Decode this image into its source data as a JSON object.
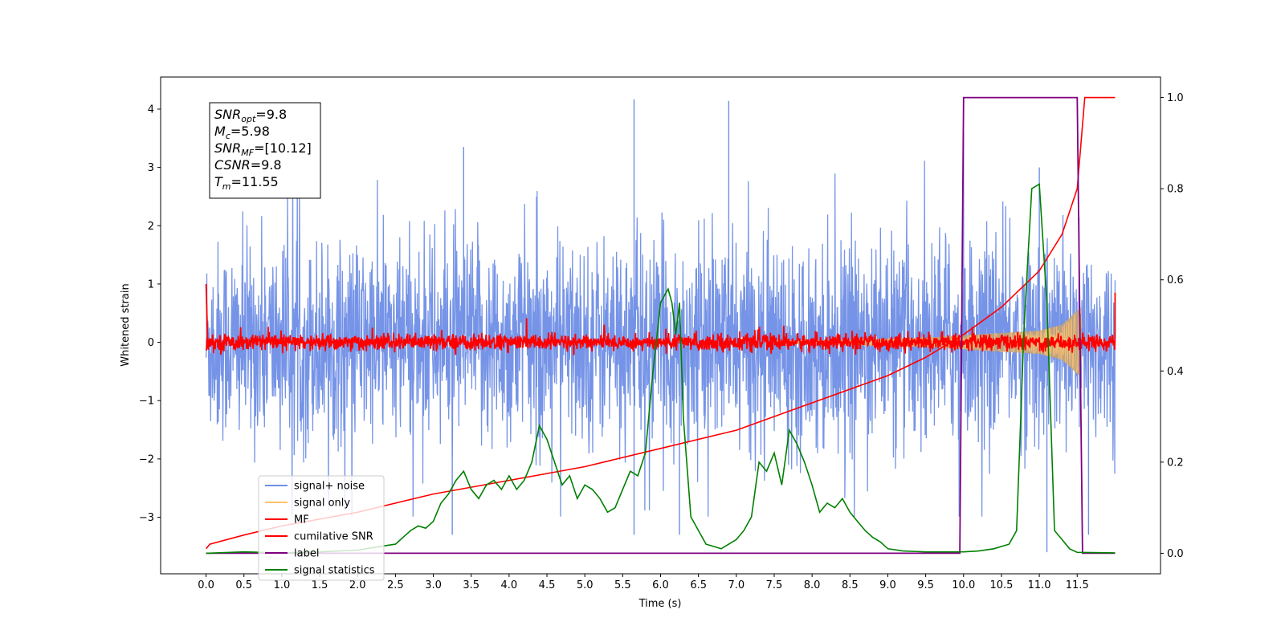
{
  "chart_data": {
    "type": "line",
    "xlabel": "Time (s)",
    "ylabel_left": "Whitened strain",
    "ylabel_right": "",
    "xlim": [
      -0.6,
      12.6
    ],
    "ylim_left": [
      -3.97,
      4.55
    ],
    "ylim_right": [
      -0.045,
      1.045
    ],
    "xticks": [
      "0.0",
      "0.5",
      "1.0",
      "1.5",
      "2.0",
      "2.5",
      "3.0",
      "3.5",
      "4.0",
      "4.5",
      "5.0",
      "5.5",
      "6.0",
      "6.5",
      "7.0",
      "7.5",
      "8.0",
      "8.5",
      "9.0",
      "9.5",
      "10.0",
      "10.5",
      "11.0",
      "11.5"
    ],
    "yticks_left": [
      "−3",
      "−2",
      "−1",
      "0",
      "1",
      "2",
      "3",
      "4"
    ],
    "yticks_right": [
      "0.0",
      "0.2",
      "0.4",
      "0.6",
      "0.8",
      "1.0"
    ],
    "grid": false,
    "legend_position": "lower-left",
    "legend": [
      {
        "label": "signal+ noise",
        "color": "#6f8ee6"
      },
      {
        "label": "signal only",
        "color": "#ffc36e"
      },
      {
        "label": "MF",
        "color": "#ff0000"
      },
      {
        "label": "cumilative SNR",
        "color": "#ff0000"
      },
      {
        "label": "label",
        "color": "#800080"
      },
      {
        "label": "signal statistics",
        "color": "#008000"
      }
    ],
    "info_box": [
      {
        "base": "SNR",
        "sub": "opt",
        "value": "=9.8"
      },
      {
        "base": "M",
        "sub": "c",
        "value": "=5.98"
      },
      {
        "base": "SNR",
        "sub": "MF",
        "value": "=[10.12]"
      },
      {
        "base": "CSNR",
        "sub": "",
        "value": "=9.8"
      },
      {
        "base": "T",
        "sub": "m",
        "value": "=11.55"
      }
    ],
    "series": [
      {
        "name": "signal+ noise",
        "axis": "left",
        "color": "#6f8ee6",
        "description_only": false,
        "x_range": [
          0.0,
          12.0
        ],
        "amplitude_typical": 1.3,
        "amplitude_peak": 4.15,
        "peaks": [
          [
            5.65,
            4.17
          ],
          [
            6.9,
            4.14
          ],
          [
            10.0,
            3.6
          ],
          [
            11.0,
            3.0
          ],
          [
            3.4,
            3.35
          ]
        ],
        "troughs": [
          [
            3.25,
            -3.3
          ],
          [
            5.65,
            -3.3
          ],
          [
            6.25,
            -3.3
          ],
          [
            11.1,
            -3.6
          ],
          [
            11.65,
            -3.3
          ]
        ]
      },
      {
        "name": "signal only",
        "axis": "left",
        "color": "#ffc36e",
        "envelope": [
          [
            0.0,
            0.02
          ],
          [
            8.0,
            0.03
          ],
          [
            9.5,
            0.08
          ],
          [
            10.5,
            0.16
          ],
          [
            11.0,
            0.2
          ],
          [
            11.3,
            0.3
          ],
          [
            11.55,
            0.6
          ],
          [
            11.57,
            0.0
          ]
        ]
      },
      {
        "name": "MF",
        "axis": "left",
        "color": "#ff0000",
        "start_value": 1.0,
        "noise_amplitude": 0.1,
        "end_value": 0.85,
        "x_range": [
          0.0,
          12.0
        ]
      },
      {
        "name": "cumilative SNR",
        "axis": "right",
        "x": [
          0.0,
          0.05,
          0.5,
          1.0,
          2.0,
          3.0,
          4.0,
          5.0,
          6.0,
          7.0,
          8.0,
          9.0,
          9.5,
          10.0,
          10.5,
          11.0,
          11.3,
          11.5,
          11.55,
          11.6,
          12.0
        ],
        "y": [
          0.01,
          0.02,
          0.04,
          0.06,
          0.09,
          0.13,
          0.16,
          0.19,
          0.23,
          0.27,
          0.33,
          0.39,
          0.43,
          0.48,
          0.54,
          0.62,
          0.7,
          0.8,
          0.9,
          1.0,
          1.0
        ]
      },
      {
        "name": "label",
        "axis": "right",
        "x": [
          0.0,
          9.95,
          10.0,
          11.5,
          11.57,
          12.0
        ],
        "y": [
          0.0,
          0.0,
          1.0,
          1.0,
          0.0,
          0.0
        ]
      },
      {
        "name": "signal statistics",
        "axis": "right",
        "x": [
          0.0,
          0.5,
          1.0,
          1.5,
          2.0,
          2.3,
          2.5,
          2.7,
          2.8,
          2.9,
          3.0,
          3.1,
          3.2,
          3.3,
          3.4,
          3.5,
          3.6,
          3.7,
          3.8,
          3.9,
          4.0,
          4.1,
          4.2,
          4.3,
          4.4,
          4.5,
          4.6,
          4.7,
          4.8,
          4.9,
          5.0,
          5.1,
          5.2,
          5.3,
          5.4,
          5.5,
          5.6,
          5.7,
          5.8,
          5.9,
          6.0,
          6.1,
          6.15,
          6.2,
          6.25,
          6.3,
          6.4,
          6.5,
          6.6,
          6.7,
          6.8,
          6.9,
          7.0,
          7.1,
          7.2,
          7.3,
          7.4,
          7.5,
          7.6,
          7.7,
          7.8,
          7.9,
          8.0,
          8.1,
          8.2,
          8.3,
          8.4,
          8.5,
          8.6,
          8.7,
          8.8,
          8.9,
          9.0,
          9.2,
          9.5,
          10.0,
          10.2,
          10.4,
          10.6,
          10.7,
          10.8,
          10.9,
          11.0,
          11.1,
          11.2,
          11.3,
          11.4,
          11.5,
          12.0
        ],
        "y": [
          0.0,
          0.003,
          0.001,
          0.003,
          0.007,
          0.015,
          0.02,
          0.05,
          0.06,
          0.055,
          0.07,
          0.11,
          0.13,
          0.16,
          0.18,
          0.14,
          0.12,
          0.15,
          0.16,
          0.14,
          0.17,
          0.14,
          0.16,
          0.2,
          0.28,
          0.25,
          0.2,
          0.15,
          0.17,
          0.12,
          0.15,
          0.14,
          0.12,
          0.09,
          0.1,
          0.14,
          0.18,
          0.17,
          0.22,
          0.4,
          0.55,
          0.58,
          0.55,
          0.48,
          0.55,
          0.3,
          0.08,
          0.05,
          0.02,
          0.015,
          0.01,
          0.02,
          0.03,
          0.05,
          0.08,
          0.2,
          0.18,
          0.22,
          0.15,
          0.27,
          0.24,
          0.2,
          0.15,
          0.09,
          0.11,
          0.1,
          0.12,
          0.09,
          0.07,
          0.05,
          0.035,
          0.025,
          0.01,
          0.005,
          0.003,
          0.003,
          0.005,
          0.01,
          0.02,
          0.05,
          0.5,
          0.8,
          0.81,
          0.55,
          0.05,
          0.03,
          0.01,
          0.002,
          0.001
        ]
      }
    ]
  }
}
